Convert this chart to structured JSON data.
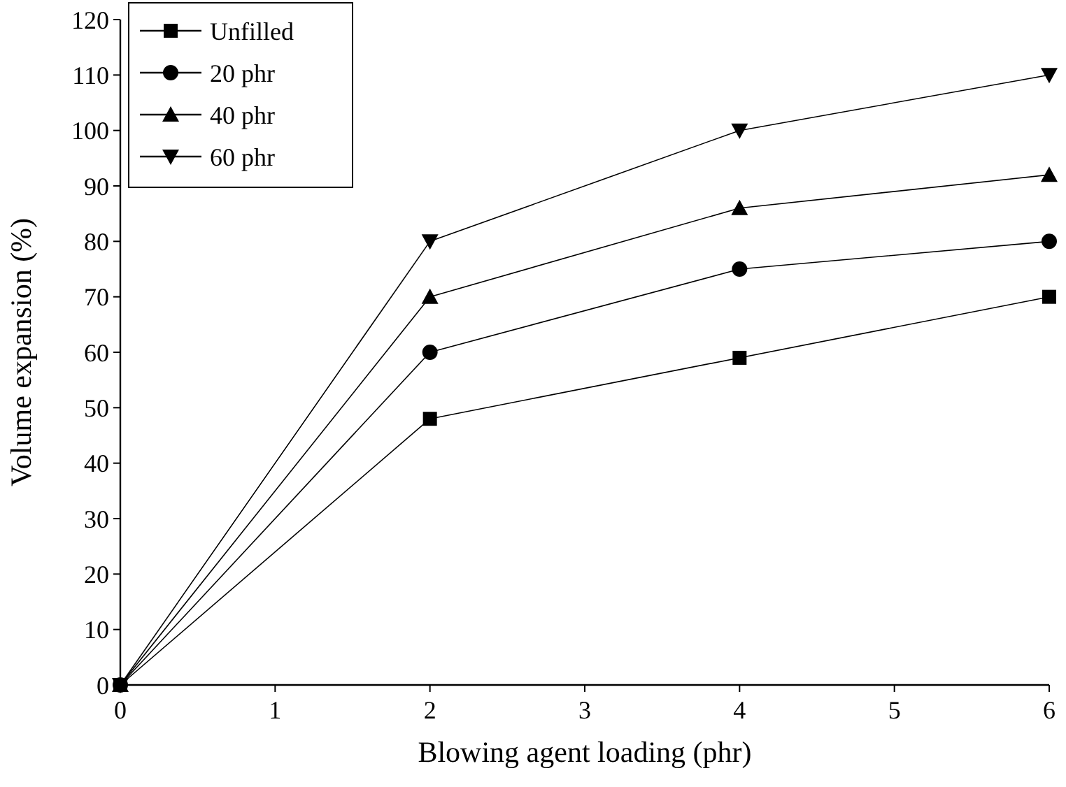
{
  "chart_data": {
    "type": "line",
    "xlabel": "Blowing agent loading (phr)",
    "ylabel": "Volume expansion (%)",
    "x": [
      0,
      2,
      4,
      6
    ],
    "xlim": [
      0,
      6
    ],
    "xticks": [
      0,
      1,
      2,
      3,
      4,
      5,
      6
    ],
    "ylim": [
      0,
      120
    ],
    "yticks": [
      0,
      10,
      20,
      30,
      40,
      50,
      60,
      70,
      80,
      90,
      100,
      110,
      120
    ],
    "legend": "top left",
    "grid": false,
    "line_style": "solid",
    "series": [
      {
        "name": "Unfilled",
        "color": "#000000",
        "marker": "square",
        "values": [
          0,
          48,
          59,
          70
        ]
      },
      {
        "name": "20 phr",
        "color": "#000000",
        "marker": "circle",
        "values": [
          0,
          60,
          75,
          80
        ]
      },
      {
        "name": "40 phr",
        "color": "#000000",
        "marker": "triangle",
        "values": [
          0,
          70,
          86,
          92
        ]
      },
      {
        "name": "60 phr",
        "color": "#000000",
        "marker": "triangle-down",
        "values": [
          0,
          80,
          100,
          110
        ]
      }
    ]
  }
}
